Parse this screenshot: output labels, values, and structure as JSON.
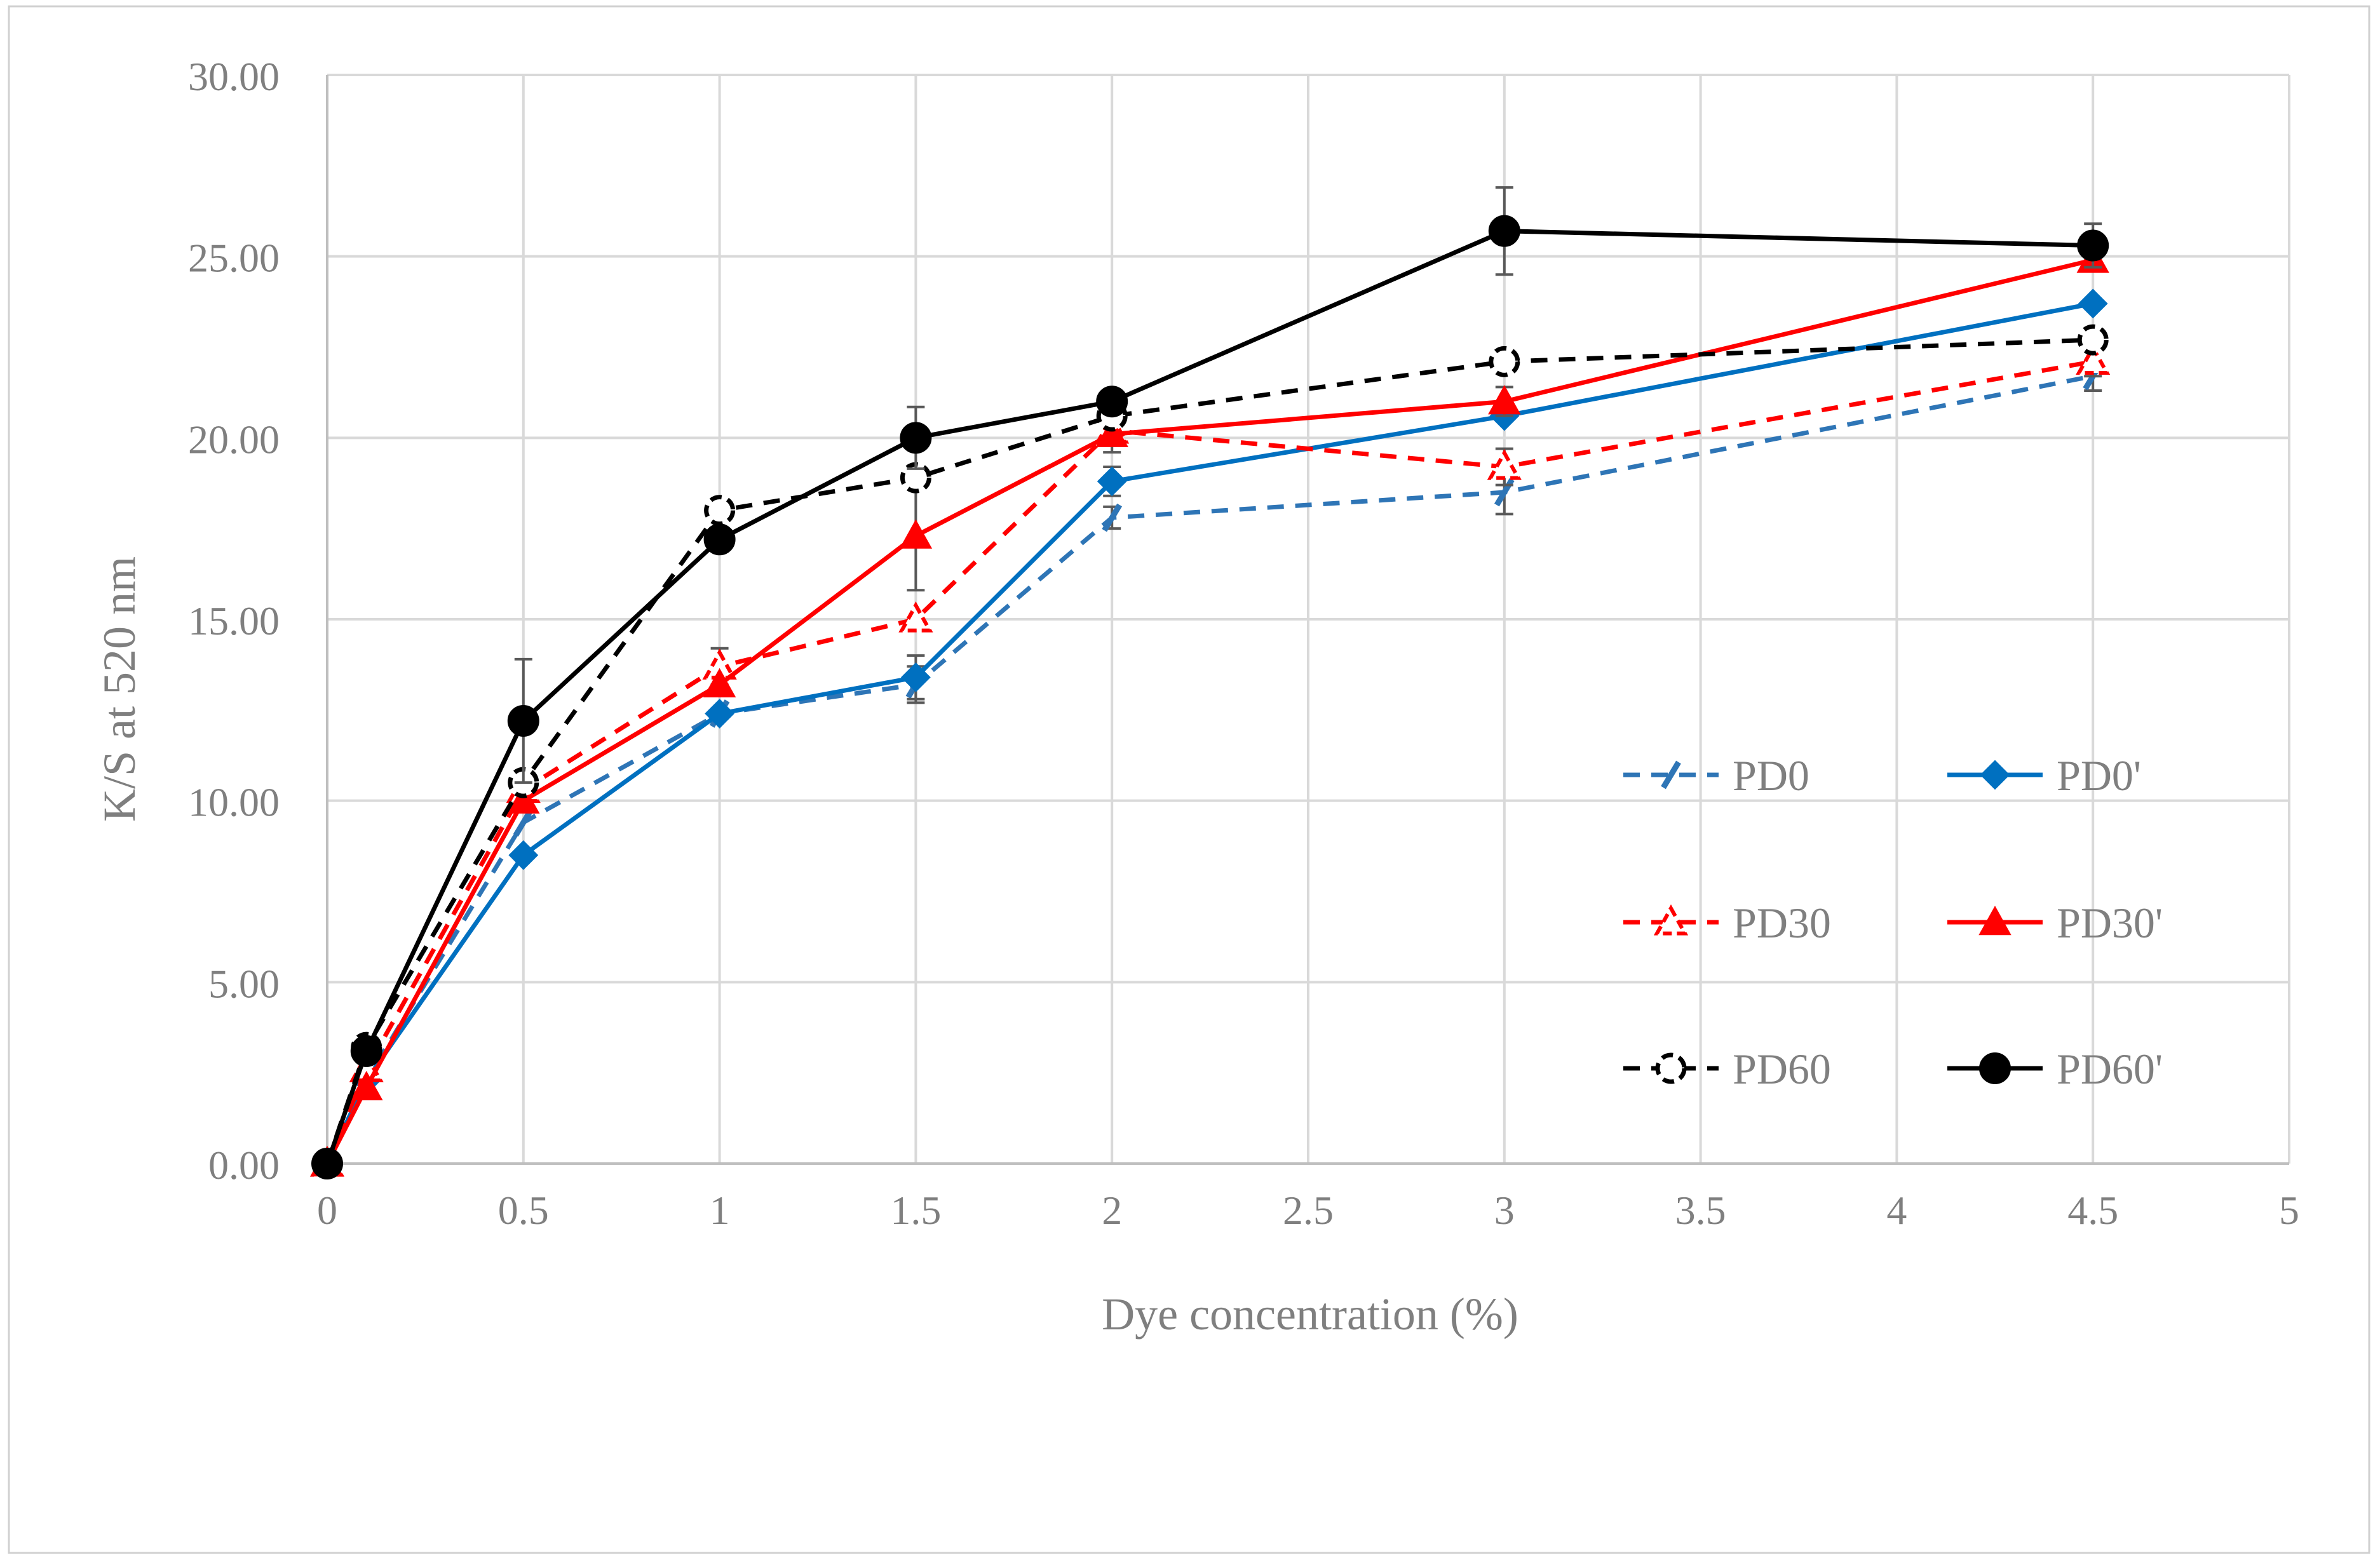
{
  "chart_data": {
    "type": "line",
    "title": "",
    "xlabel": "Dye concentration (%)",
    "ylabel": "K/S at 520 nm",
    "xlim": [
      0,
      5
    ],
    "ylim": [
      0,
      30
    ],
    "x_ticks": [
      "0",
      "0.5",
      "1",
      "1.5",
      "2",
      "2.5",
      "3",
      "3.5",
      "4",
      "4.5",
      "5"
    ],
    "y_ticks": [
      "0.00",
      "5.00",
      "10.00",
      "15.00",
      "20.00",
      "25.00",
      "30.00"
    ],
    "grid": true,
    "legend_position": "right-middle",
    "x": [
      0,
      0.1,
      0.5,
      1,
      1.5,
      2,
      3,
      4.5
    ],
    "series": [
      {
        "name": "PD0",
        "color": "#2E75B6",
        "dashed": true,
        "marker": "bar",
        "values": [
          0,
          2.3,
          9.4,
          12.4,
          13.2,
          17.8,
          18.5,
          21.7
        ],
        "errors": [
          0,
          0,
          0,
          0,
          0.5,
          0.3,
          0.6,
          0.4
        ]
      },
      {
        "name": "PD0'",
        "color": "#0070C0",
        "dashed": false,
        "marker": "diamond",
        "values": [
          0,
          2.3,
          8.5,
          12.4,
          13.4,
          18.8,
          20.6,
          23.7
        ],
        "errors": [
          0,
          0,
          0,
          0,
          0.6,
          0.4,
          0,
          0
        ]
      },
      {
        "name": "PD30",
        "color": "#FF0000",
        "dashed": true,
        "marker": "open-triangle",
        "values": [
          0,
          2.6,
          10.3,
          13.7,
          15.0,
          20.2,
          19.2,
          22.1
        ],
        "errors": [
          0,
          0,
          0,
          0.5,
          0,
          0,
          0.5,
          0.4
        ]
      },
      {
        "name": "PD30'",
        "color": "#FF0000",
        "dashed": false,
        "marker": "triangle",
        "values": [
          0,
          2.1,
          10.0,
          13.2,
          17.3,
          20.1,
          21.0,
          24.9
        ],
        "errors": [
          0,
          0,
          0,
          0,
          1.5,
          0.5,
          0.4,
          0
        ]
      },
      {
        "name": "PD60",
        "color": "#000000",
        "dashed": true,
        "marker": "open-circle",
        "values": [
          0,
          3.2,
          10.5,
          18.0,
          18.9,
          20.6,
          22.1,
          22.7
        ],
        "errors": [
          0,
          0,
          0,
          0,
          0,
          0,
          0,
          0
        ]
      },
      {
        "name": "PD60'",
        "color": "#000000",
        "dashed": false,
        "marker": "circle",
        "values": [
          0,
          3.1,
          12.2,
          17.2,
          20.0,
          21.0,
          25.7,
          25.3
        ],
        "errors": [
          0,
          0,
          1.7,
          0,
          0.85,
          0,
          1.2,
          0.6
        ]
      }
    ]
  }
}
